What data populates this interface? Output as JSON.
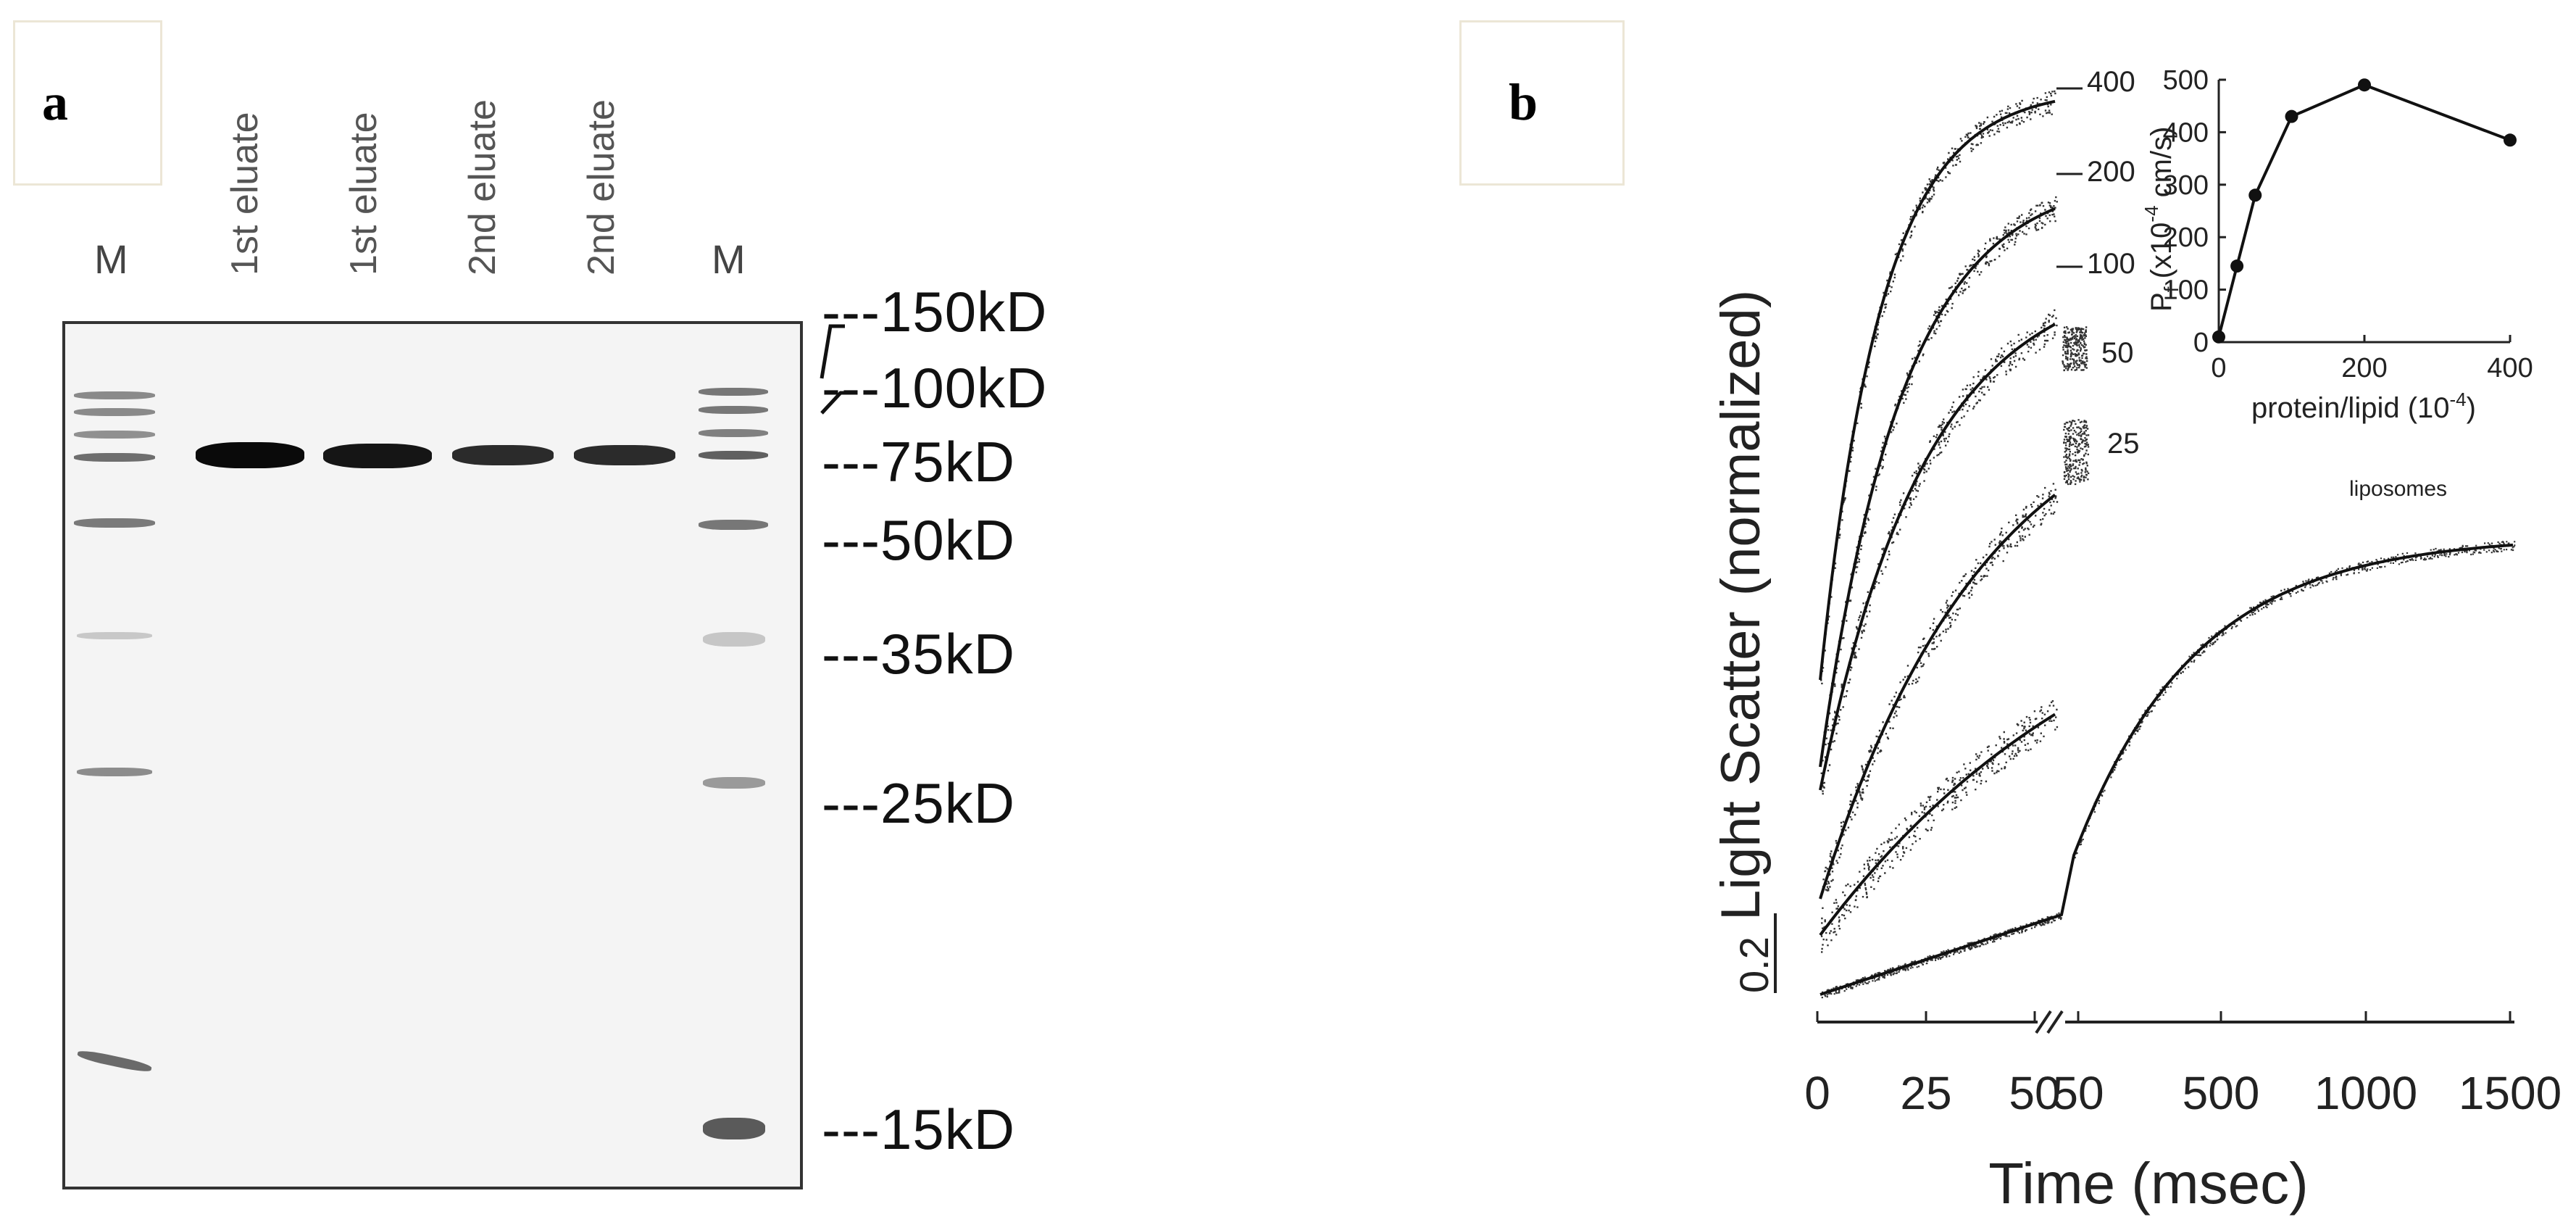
{
  "panel_a": {
    "letter": "a",
    "lanes": [
      {
        "label": "M"
      },
      {
        "label": "1st eluate"
      },
      {
        "label": "1st eluate"
      },
      {
        "label": "2nd eluate"
      },
      {
        "label": "2nd eluate"
      },
      {
        "label": "M"
      }
    ],
    "markers": [
      "150kD",
      "100kD",
      "75kD",
      "50kD",
      "35kD",
      "25kD",
      "15kD"
    ]
  },
  "panel_b": {
    "letter": "b",
    "ylabel": "Light Scatter (normalized)",
    "xlabel": "Time (msec)",
    "scale_bar_label": "0.2",
    "curve_labels": [
      "400",
      "200",
      "100",
      "50",
      "25",
      "liposomes"
    ],
    "xticks_left": [
      "0",
      "25",
      "50"
    ],
    "xticks_right": [
      "50",
      "500",
      "1000",
      "1500"
    ],
    "inset": {
      "ylabel": "P_f (x10^-4 cm/s)",
      "xlabel": "protein/lipid (10^-4)",
      "yticks": [
        "0",
        "100",
        "200",
        "300",
        "400",
        "500"
      ],
      "xticks": [
        "0",
        "200",
        "400"
      ]
    }
  },
  "chart_data": {
    "type": "scatter",
    "title": "",
    "xlabel": "protein/lipid (10^-4)",
    "ylabel": "P_f (x10^-4 cm/s)",
    "xlim": [
      0,
      400
    ],
    "ylim": [
      0,
      500
    ],
    "series": [
      {
        "x": [
          0,
          25,
          50,
          100,
          200,
          400
        ],
        "y": [
          10,
          145,
          280,
          430,
          490,
          385
        ]
      }
    ]
  }
}
